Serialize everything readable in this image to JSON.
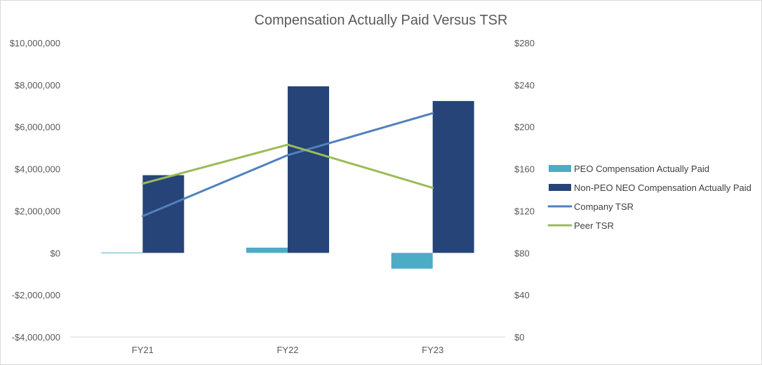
{
  "chart_data": {
    "type": "bar",
    "title": "Compensation Actually Paid Versus TSR",
    "categories": [
      "FY21",
      "FY22",
      "FY23"
    ],
    "series": [
      {
        "name": "PEO Compensation Actually Paid",
        "kind": "bar",
        "axis": "left",
        "color": "#4bacc6",
        "values": [
          20000,
          250000,
          -750000
        ]
      },
      {
        "name": "Non-PEO NEO Compensation Actually Paid",
        "kind": "bar",
        "axis": "left",
        "color": "#264478",
        "values": [
          3700000,
          7930000,
          7230000
        ]
      },
      {
        "name": "Company TSR",
        "kind": "line",
        "axis": "right",
        "color": "#4f81bd",
        "values": [
          115,
          173,
          213
        ]
      },
      {
        "name": "Peer TSR",
        "kind": "line",
        "axis": "right",
        "color": "#9bbb59",
        "values": [
          146,
          183,
          142
        ]
      }
    ],
    "left_axis": {
      "ylim": [
        -4000000,
        10000000
      ],
      "ticks": [
        10000000,
        8000000,
        6000000,
        4000000,
        2000000,
        0,
        -2000000,
        -4000000
      ],
      "tick_labels": [
        "$10,000,000",
        "$8,000,000",
        "$6,000,000",
        "$4,000,000",
        "$2,000,000",
        "$0",
        "-$2,000,000",
        "-$4,000,000"
      ]
    },
    "right_axis": {
      "ylim": [
        0,
        280
      ],
      "ticks": [
        280,
        240,
        200,
        160,
        120,
        80,
        40,
        0
      ],
      "tick_labels": [
        "$280",
        "$240",
        "$200",
        "$160",
        "$120",
        "$80",
        "$40",
        "$0"
      ]
    },
    "legend_position": "right",
    "grid": false
  }
}
